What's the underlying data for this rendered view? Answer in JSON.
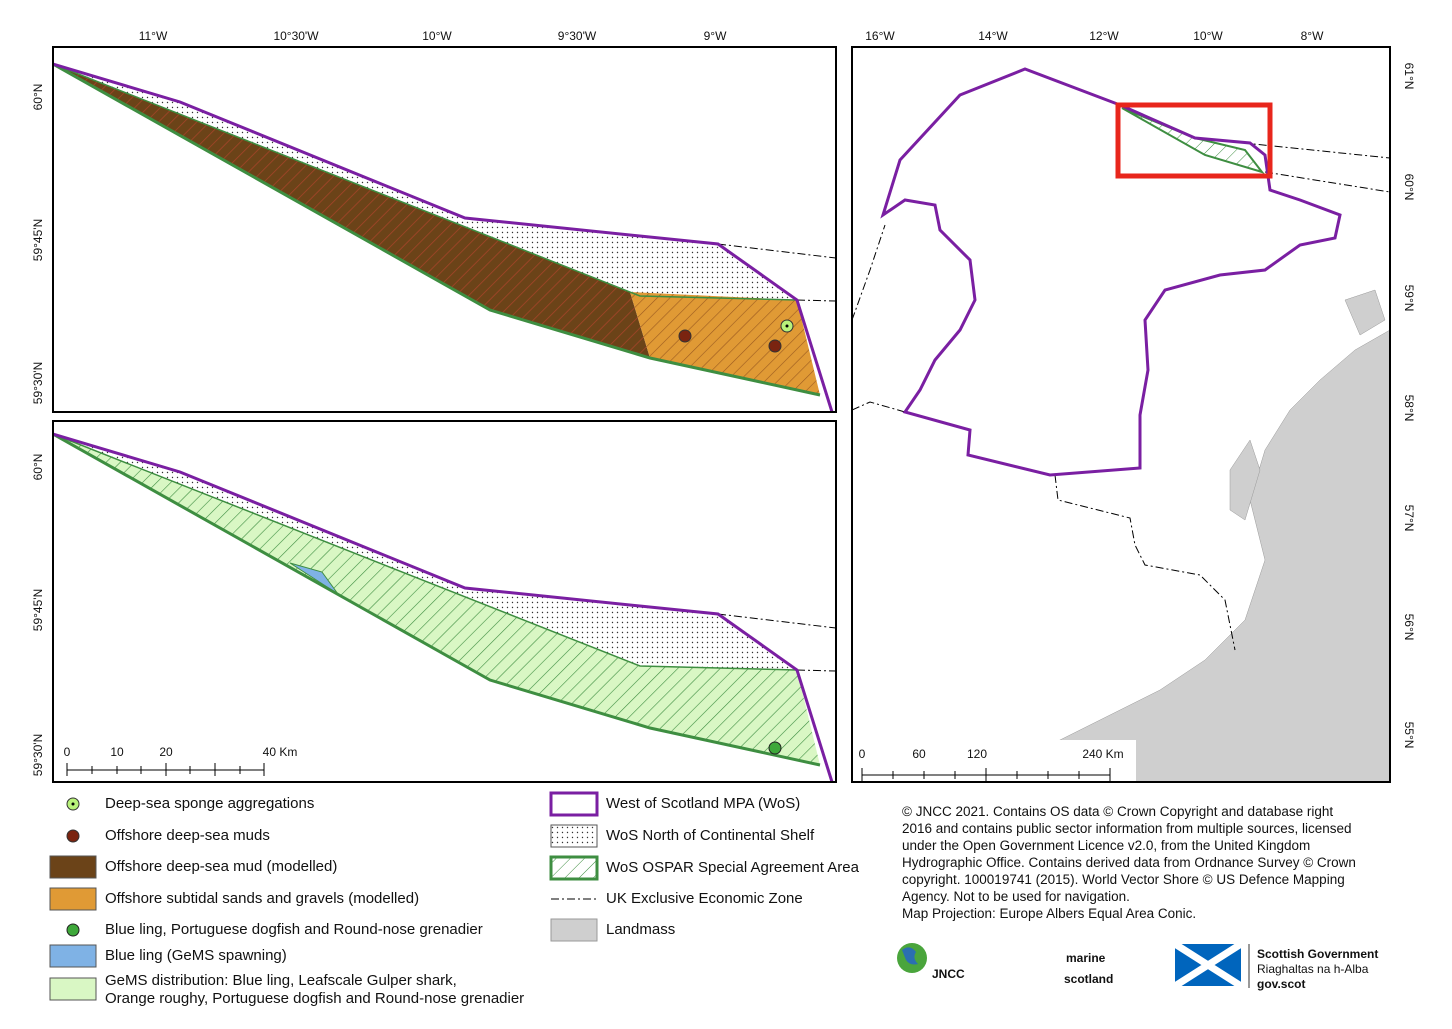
{
  "top_panel": {
    "lon_labels": [
      "11°W",
      "10°30'W",
      "10°W",
      "9°30'W",
      "9°W"
    ],
    "lat_labels": [
      "60°N",
      "59°45'N",
      "59°30'N"
    ]
  },
  "bottom_panel": {
    "lat_labels": [
      "60°N",
      "59°45'N",
      "59°30'N"
    ],
    "scale_labels": [
      "0",
      "10",
      "20",
      "40 Km"
    ]
  },
  "inset": {
    "lon_labels": [
      "16°W",
      "14°W",
      "12°W",
      "10°W",
      "8°W"
    ],
    "lat_labels": [
      "61°N",
      "60°N",
      "59°N",
      "58°N",
      "57°N",
      "56°N",
      "55°N"
    ],
    "scale_labels": [
      "0",
      "60",
      "120",
      "240 Km"
    ]
  },
  "legend_left": [
    {
      "label": "Deep-sea sponge aggregations"
    },
    {
      "label": "Offshore deep-sea muds"
    },
    {
      "label": "Offshore deep-sea mud (modelled)"
    },
    {
      "label": "Offshore subtidal sands and gravels (modelled)"
    },
    {
      "label": "Blue ling, Portuguese dogfish and Round-nose grenadier"
    },
    {
      "label": "Blue ling (GeMS spawning)"
    },
    {
      "lines": [
        "GeMS distribution: Blue ling, Leafscale Gulper shark,",
        "Orange roughy, Portuguese dogfish and Round-nose grenadier"
      ]
    }
  ],
  "legend_right": [
    {
      "label": "West of Scotland MPA (WoS)"
    },
    {
      "label": "WoS North of Continental Shelf"
    },
    {
      "label": "WoS OSPAR Special Agreement Area"
    },
    {
      "label": "UK Exclusive Economic Zone"
    },
    {
      "label": "Landmass"
    }
  ],
  "credits": [
    "© JNCC 2021. Contains OS data © Crown Copyright and database right",
    "2016 and contains public sector information from multiple sources, licensed",
    "under the Open Government Licence v2.0, from the United Kingdom",
    "Hydrographic Office. Contains derived data from Ordnance Survey © Crown",
    "copyright. 100019741 (2015). World Vector Shore © US Defence Mapping",
    "Agency.  Not to be used for navigation.",
    "Map Projection: Europe Albers Equal Area Conic."
  ],
  "logos": {
    "jncc": "JNCC",
    "marine_1": "marine",
    "marine_2": "scotland",
    "gov_1": "Scottish Government",
    "gov_2": "Riaghaltas na h-Alba",
    "gov_3": "gov.scot"
  }
}
